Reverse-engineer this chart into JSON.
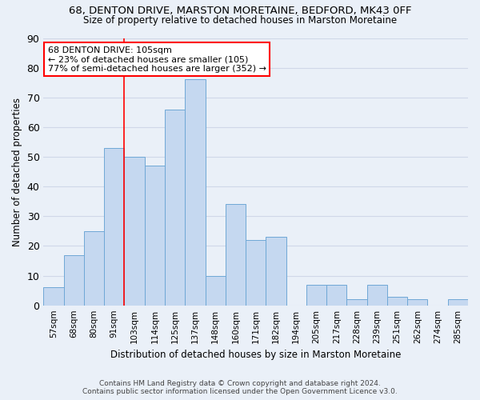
{
  "title_line1": "68, DENTON DRIVE, MARSTON MORETAINE, BEDFORD, MK43 0FF",
  "title_line2": "Size of property relative to detached houses in Marston Moretaine",
  "xlabel": "Distribution of detached houses by size in Marston Moretaine",
  "ylabel": "Number of detached properties",
  "footer_line1": "Contains HM Land Registry data © Crown copyright and database right 2024.",
  "footer_line2": "Contains public sector information licensed under the Open Government Licence v3.0.",
  "categories": [
    "57sqm",
    "68sqm",
    "80sqm",
    "91sqm",
    "103sqm",
    "114sqm",
    "125sqm",
    "137sqm",
    "148sqm",
    "160sqm",
    "171sqm",
    "182sqm",
    "194sqm",
    "205sqm",
    "217sqm",
    "228sqm",
    "239sqm",
    "251sqm",
    "262sqm",
    "274sqm",
    "285sqm"
  ],
  "values": [
    6,
    17,
    25,
    53,
    50,
    47,
    66,
    76,
    10,
    34,
    22,
    23,
    0,
    7,
    7,
    2,
    7,
    3,
    2,
    0,
    2
  ],
  "bar_color": "#c5d8f0",
  "bar_edge_color": "#6fa8d6",
  "grid_color": "#d0d8e8",
  "background_color": "#eaf0f8",
  "annotation_text_line1": "68 DENTON DRIVE: 105sqm",
  "annotation_text_line2": "← 23% of detached houses are smaller (105)",
  "annotation_text_line3": "77% of semi-detached houses are larger (352) →",
  "red_line_x": 3.5,
  "ylim": [
    0,
    90
  ],
  "yticks": [
    0,
    10,
    20,
    30,
    40,
    50,
    60,
    70,
    80,
    90
  ]
}
